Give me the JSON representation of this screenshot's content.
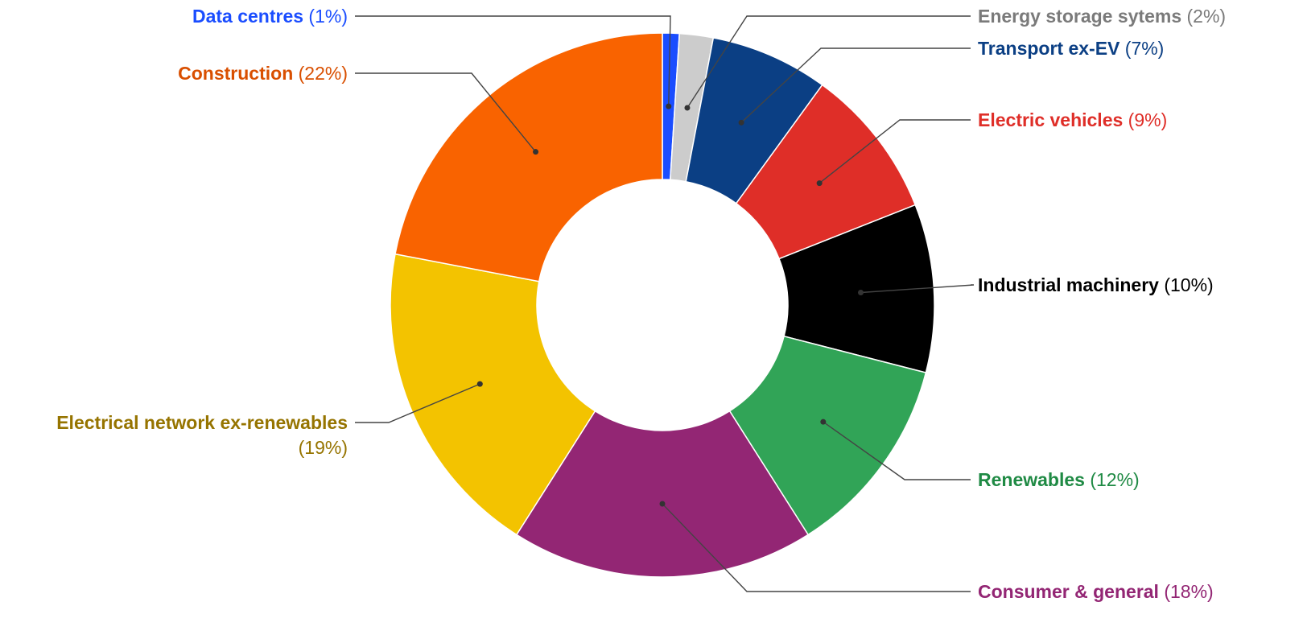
{
  "chart_data": {
    "type": "pie",
    "categories": [
      "Data centres",
      "Energy storage sytems",
      "Transport ex-EV",
      "Electric vehicles",
      "Industrial machinery",
      "Renewables",
      "Consumer & general",
      "Electrical network ex-renewables",
      "Construction"
    ],
    "values": [
      1,
      2,
      7,
      9,
      10,
      12,
      18,
      19,
      22
    ],
    "value_labels": [
      "(1%)",
      "(2%)",
      "(7%)",
      "(9%)",
      "(10%)",
      "(12%)",
      "(18%)",
      "(19%)",
      "(22%)"
    ],
    "colors": [
      "#1a4dff",
      "#cccccc",
      "#0b3f84",
      "#df2e28",
      "#000000",
      "#31a457",
      "#932674",
      "#f3c300",
      "#f96300"
    ],
    "label_colors": [
      "#1a4dff",
      "#7a7a7a",
      "#0b3f84",
      "#df2e28",
      "#000000",
      "#1f8a44",
      "#932674",
      "#967400",
      "#d94f00"
    ],
    "donut": true,
    "start_angle_deg": 0,
    "direction": "clockwise",
    "legend": "none"
  }
}
